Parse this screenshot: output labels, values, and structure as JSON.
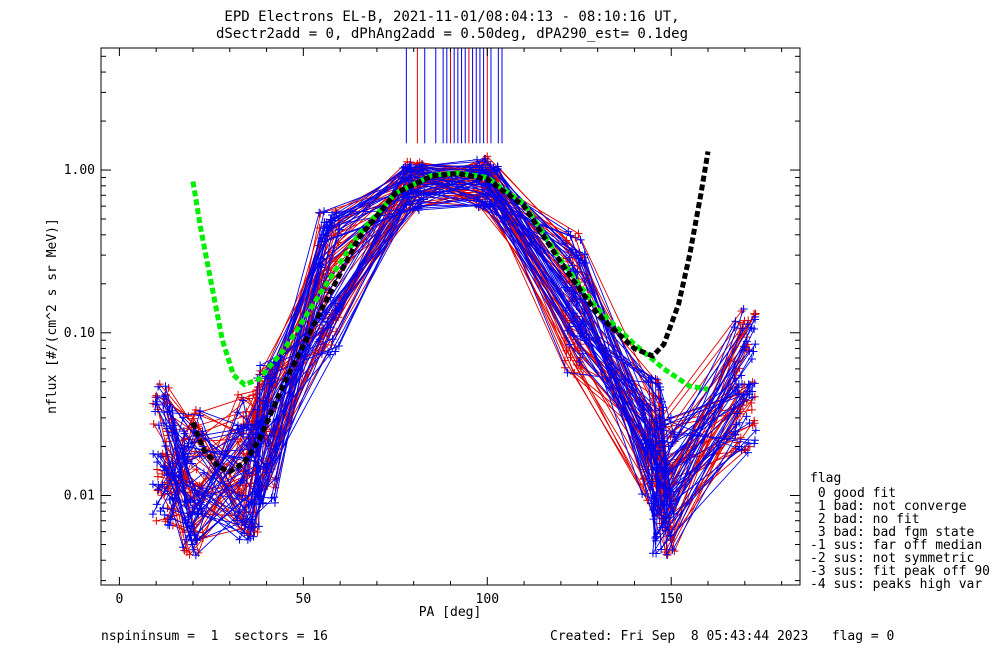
{
  "chart_data": {
    "type": "line",
    "title": "EPD Electrons EL-B, 2021-11-01/08:04:13 - 08:10:16 UT,",
    "subtitle": "dSectr2add = 0, dPhAng2add = 0.50deg, dPA290_est=   0.1deg",
    "xlabel": "PA [deg]",
    "ylabel": "nflux [#/(cm^2 s sr MeV)]",
    "xlim": [
      -5,
      185
    ],
    "ylim_log10": [
      -2.55,
      0.75
    ],
    "log_y": true,
    "x_ticks": [
      {
        "value": 0,
        "label": "0"
      },
      {
        "value": 50,
        "label": "50"
      },
      {
        "value": 100,
        "label": "100"
      },
      {
        "value": 150,
        "label": "150"
      }
    ],
    "y_ticks": [
      {
        "value": 0.01,
        "label": "0.01"
      },
      {
        "value": 0.1,
        "label": "0.10"
      },
      {
        "value": 1.0,
        "label": "1.00"
      }
    ],
    "colors": {
      "spin_a": "#dd0000",
      "spin_b": "#0000ee",
      "fit_green": "#00ee00",
      "fit_black": "#000000"
    },
    "fits": [
      {
        "color": "#00ee00",
        "x": [
          20,
          22,
          25,
          28,
          31,
          34,
          38,
          45,
          55,
          65,
          75,
          85,
          92,
          100,
          110,
          120,
          130,
          140,
          148,
          155,
          160
        ],
        "y": [
          0.85,
          0.45,
          0.2,
          0.09,
          0.055,
          0.048,
          0.052,
          0.08,
          0.18,
          0.4,
          0.72,
          0.93,
          0.96,
          0.9,
          0.62,
          0.28,
          0.14,
          0.085,
          0.06,
          0.047,
          0.045
        ]
      },
      {
        "color": "#000000",
        "x": [
          20,
          23,
          27,
          30,
          34,
          38,
          45,
          55,
          65,
          75,
          85,
          92,
          100,
          110,
          120,
          130,
          140,
          145,
          148,
          152,
          155,
          158,
          160
        ],
        "y": [
          0.028,
          0.019,
          0.015,
          0.014,
          0.016,
          0.022,
          0.05,
          0.14,
          0.38,
          0.72,
          0.92,
          0.95,
          0.88,
          0.6,
          0.27,
          0.13,
          0.08,
          0.072,
          0.085,
          0.15,
          0.3,
          0.7,
          1.3
        ]
      }
    ],
    "traces": {
      "pa_bins": [
        12,
        20,
        35,
        40,
        57,
        80,
        100,
        124,
        145,
        148,
        170
      ],
      "profile": [
        0.018,
        0.012,
        0.015,
        0.025,
        0.2,
        0.8,
        0.85,
        0.15,
        0.02,
        0.012,
        0.05
      ],
      "spread_log10": 0.45,
      "count_per_color": 45
    },
    "saturation_spikes_x": [
      78,
      81,
      83,
      86,
      88,
      89,
      90,
      91,
      92,
      93,
      94,
      95,
      96,
      97,
      98,
      99,
      100,
      101,
      103,
      104
    ]
  },
  "legend": {
    "heading": "flag",
    "items": [
      " 0 good fit",
      " 1 bad: not converge",
      " 2 bad: no fit",
      " 3 bad: bad fgm state",
      "-1 sus: far off median",
      "-2 sus: not symmetric",
      "-3 sus: fit peak off 90",
      "-4 sus: peaks high var"
    ]
  },
  "footer": {
    "left": "nspininsum =  1  sectors = 16",
    "right": "Created: Fri Sep  8 05:43:44 2023   flag = 0"
  }
}
